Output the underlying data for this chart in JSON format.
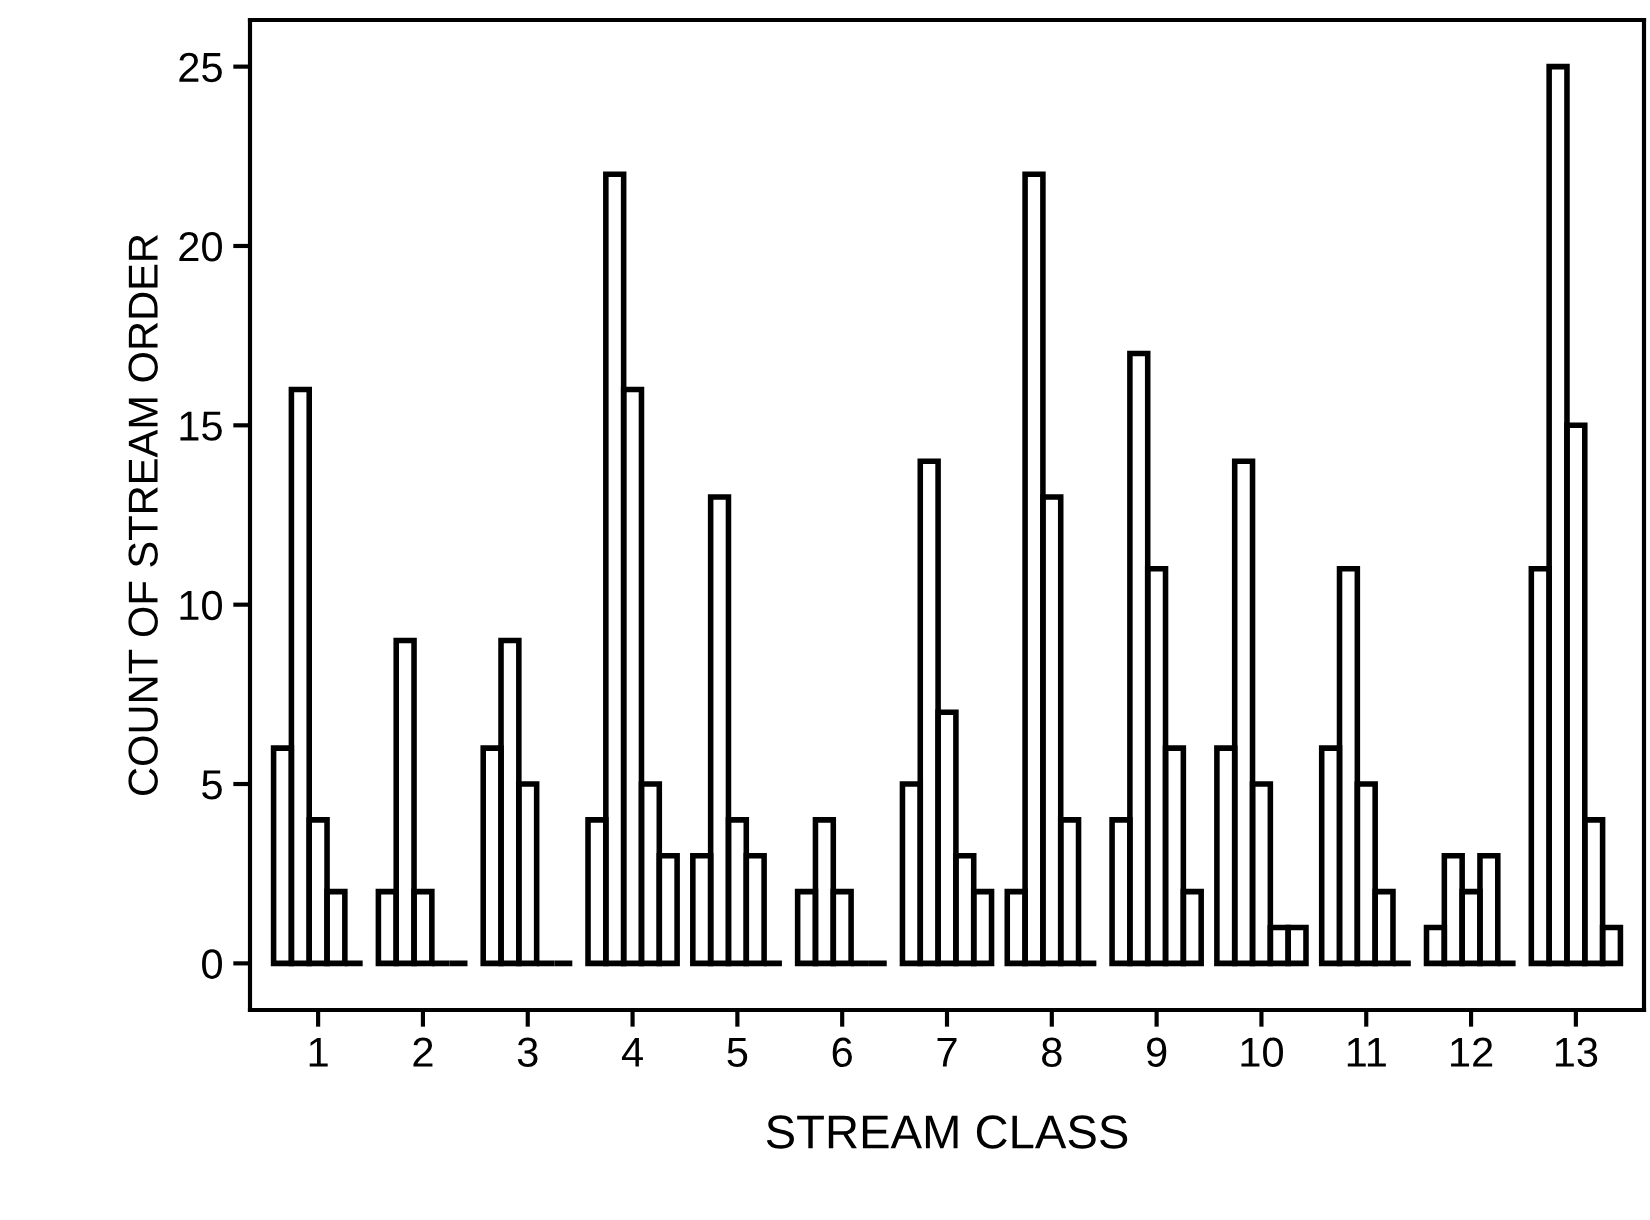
{
  "chart_data": {
    "type": "bar",
    "xlabel": "STREAM CLASS",
    "ylabel": "COUNT OF STREAM ORDER",
    "categories": [
      "1",
      "2",
      "3",
      "4",
      "5",
      "6",
      "7",
      "8",
      "9",
      "10",
      "11",
      "12",
      "13"
    ],
    "series": [
      {
        "color": "#000000",
        "values": [
          6,
          2,
          6,
          4,
          3,
          2,
          5,
          2,
          4,
          6,
          6,
          1,
          11
        ]
      },
      {
        "color": "#000000",
        "values": [
          16,
          9,
          9,
          22,
          13,
          4,
          14,
          22,
          17,
          14,
          11,
          3,
          25
        ]
      },
      {
        "color": "#000000",
        "values": [
          4,
          2,
          5,
          16,
          4,
          2,
          7,
          13,
          11,
          5,
          5,
          2,
          15
        ]
      },
      {
        "color": "#000000",
        "values": [
          2,
          0,
          0,
          5,
          3,
          0,
          3,
          4,
          6,
          1,
          2,
          3,
          4
        ]
      },
      {
        "color": "#000000",
        "values": [
          0,
          0,
          0,
          3,
          0,
          0,
          2,
          0,
          2,
          1,
          0,
          0,
          1
        ]
      }
    ],
    "ylim": [
      -1.3,
      26.3
    ],
    "yticks": [
      0,
      5,
      10,
      15,
      20,
      25
    ],
    "grid": false,
    "legend": false
  }
}
